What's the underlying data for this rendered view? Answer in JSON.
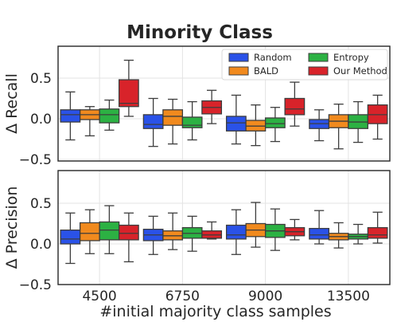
{
  "chart_data": {
    "type": "box",
    "title": "Minority Class",
    "xlabel": "#initial majority class samples",
    "categories": [
      "4500",
      "6750",
      "9000",
      "13500"
    ],
    "legend": {
      "placement": "top-right of upper panel",
      "entries": [
        "Random",
        "BALD",
        "Entropy",
        "Our Method"
      ]
    },
    "series_colors": {
      "Random": "#2a52e8",
      "BALD": "#f18a1e",
      "Entropy": "#2cb143",
      "Our Method": "#d8232a"
    },
    "grid": true,
    "panels": [
      {
        "ylabel": "Δ Recall",
        "ylim": [
          -0.5,
          0.85
        ],
        "yticks": [
          -0.5,
          0,
          0.5
        ],
        "ytick_labels": [
          "−0.5",
          "0.0",
          "0.5"
        ],
        "series": [
          {
            "name": "Random",
            "boxes": [
              {
                "low": -0.26,
                "q1": -0.04,
                "median": 0.05,
                "q3": 0.11,
                "high": 0.33
              },
              {
                "low": -0.34,
                "q1": -0.12,
                "median": -0.07,
                "q3": 0.05,
                "high": 0.25
              },
              {
                "low": -0.31,
                "q1": -0.15,
                "median": -0.05,
                "q3": 0.03,
                "high": 0.29
              },
              {
                "low": -0.27,
                "q1": -0.12,
                "median": -0.06,
                "q3": -0.01,
                "high": 0.11
              }
            ]
          },
          {
            "name": "BALD",
            "boxes": [
              {
                "low": -0.21,
                "q1": -0.01,
                "median": 0.05,
                "q3": 0.11,
                "high": 0.15
              },
              {
                "low": -0.31,
                "q1": -0.08,
                "median": 0.03,
                "q3": 0.11,
                "high": 0.24
              },
              {
                "low": -0.33,
                "q1": -0.15,
                "median": -0.09,
                "q3": -0.02,
                "high": 0.17
              },
              {
                "low": -0.37,
                "q1": -0.11,
                "median": -0.03,
                "q3": 0.05,
                "high": 0.18
              }
            ]
          },
          {
            "name": "Entropy",
            "boxes": [
              {
                "low": -0.14,
                "q1": -0.05,
                "median": 0.05,
                "q3": 0.12,
                "high": 0.23
              },
              {
                "low": -0.26,
                "q1": -0.11,
                "median": -0.08,
                "q3": 0.02,
                "high": 0.21
              },
              {
                "low": -0.28,
                "q1": -0.11,
                "median": -0.06,
                "q3": 0.01,
                "high": 0.14
              },
              {
                "low": -0.29,
                "q1": -0.12,
                "median": -0.04,
                "q3": 0.05,
                "high": 0.21
              }
            ]
          },
          {
            "name": "Our Method",
            "boxes": [
              {
                "low": 0.03,
                "q1": 0.15,
                "median": 0.19,
                "q3": 0.48,
                "high": 0.72
              },
              {
                "low": -0.06,
                "q1": 0.06,
                "median": 0.14,
                "q3": 0.22,
                "high": 0.35
              },
              {
                "low": -0.09,
                "q1": 0.05,
                "median": 0.12,
                "q3": 0.25,
                "high": 0.45
              },
              {
                "low": -0.25,
                "q1": -0.06,
                "median": 0.05,
                "q3": 0.17,
                "high": 0.29
              }
            ]
          }
        ]
      },
      {
        "ylabel": "Δ Precision",
        "ylim": [
          -0.5,
          0.88
        ],
        "yticks": [
          -0.5,
          0,
          0.5
        ],
        "ytick_labels": [
          "−0.5",
          "0.0",
          "0.5"
        ],
        "series": [
          {
            "name": "Random",
            "boxes": [
              {
                "low": -0.24,
                "q1": 0.0,
                "median": 0.06,
                "q3": 0.17,
                "high": 0.38
              },
              {
                "low": -0.13,
                "q1": 0.04,
                "median": 0.11,
                "q3": 0.18,
                "high": 0.34
              },
              {
                "low": -0.13,
                "q1": 0.06,
                "median": 0.11,
                "q3": 0.23,
                "high": 0.42
              },
              {
                "low": 0.0,
                "q1": 0.06,
                "median": 0.11,
                "q3": 0.19,
                "high": 0.41
              }
            ]
          },
          {
            "name": "BALD",
            "boxes": [
              {
                "low": -0.12,
                "q1": 0.04,
                "median": 0.13,
                "q3": 0.26,
                "high": 0.42
              },
              {
                "low": -0.07,
                "q1": 0.05,
                "median": 0.1,
                "q3": 0.16,
                "high": 0.38
              },
              {
                "low": -0.04,
                "q1": 0.09,
                "median": 0.17,
                "q3": 0.25,
                "high": 0.51
              },
              {
                "low": -0.05,
                "q1": 0.05,
                "median": 0.09,
                "q3": 0.13,
                "high": 0.26
              }
            ]
          },
          {
            "name": "Entropy",
            "boxes": [
              {
                "low": -0.12,
                "q1": 0.05,
                "median": 0.17,
                "q3": 0.27,
                "high": 0.47
              },
              {
                "low": -0.09,
                "q1": 0.07,
                "median": 0.13,
                "q3": 0.2,
                "high": 0.34
              },
              {
                "low": -0.08,
                "q1": 0.08,
                "median": 0.16,
                "q3": 0.24,
                "high": 0.43
              },
              {
                "low": 0.0,
                "q1": 0.06,
                "median": 0.09,
                "q3": 0.12,
                "high": 0.24
              }
            ]
          },
          {
            "name": "Our Method",
            "boxes": [
              {
                "low": -0.22,
                "q1": 0.05,
                "median": 0.13,
                "q3": 0.23,
                "high": 0.38
              },
              {
                "low": 0.06,
                "q1": 0.07,
                "median": 0.11,
                "q3": 0.16,
                "high": 0.27
              },
              {
                "low": 0.05,
                "q1": 0.1,
                "median": 0.15,
                "q3": 0.2,
                "high": 0.3
              },
              {
                "low": 0.01,
                "q1": 0.07,
                "median": 0.11,
                "q3": 0.2,
                "high": 0.39
              }
            ]
          }
        ]
      }
    ]
  }
}
